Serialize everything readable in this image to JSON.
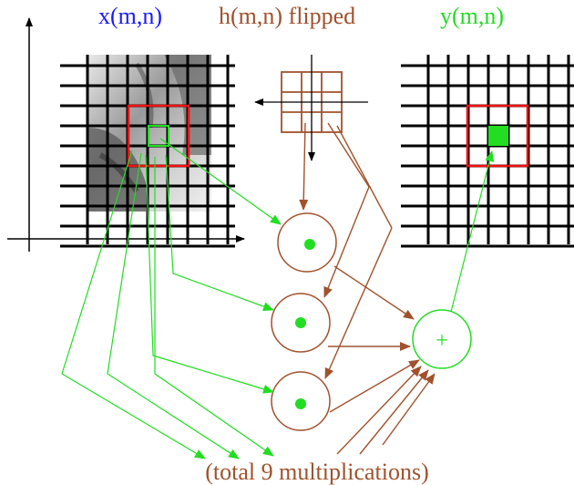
{
  "labels": {
    "input": "x(m,n)",
    "kernel": "h(m,n) flipped",
    "output": "y(m,n)",
    "footer": "(total 9 multiplications)",
    "sum_symbol": "+"
  },
  "colors": {
    "input_label": "#1a1aff",
    "kernel": "#a0522d",
    "output": "#22dd22",
    "highlight_box": "#ee1111",
    "grid": "#000000"
  }
}
